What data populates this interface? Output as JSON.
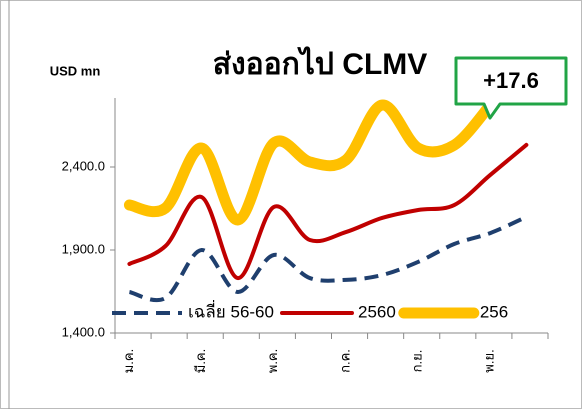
{
  "chart_data": {
    "type": "line",
    "title": "ส่งออกไป CLMV",
    "y_axis_label": "USD mn",
    "annotation": "+17.6",
    "categories": [
      "ม.ค.",
      null,
      "มี.ค.",
      null,
      "พ.ค.",
      null,
      "ก.ค.",
      null,
      "ก.ย.",
      null,
      "พ.ย.",
      null
    ],
    "series": [
      {
        "name": "เฉลี่ย 56-60",
        "color": "#1f3f6e",
        "dashed": true,
        "width": 4,
        "values": [
          1647,
          1611,
          1900,
          1647,
          1870,
          1731,
          1720,
          1749,
          1828,
          1936,
          2002,
          2099
        ]
      },
      {
        "name": "2560",
        "color": "#c00000",
        "dashed": false,
        "width": 4,
        "values": [
          1816,
          1924,
          2219,
          1731,
          2159,
          1960,
          2008,
          2093,
          2141,
          2171,
          2352,
          2533
        ]
      },
      {
        "name": "256",
        "color": "#ffc000",
        "dashed": false,
        "width": 11,
        "values": [
          2171,
          2153,
          2514,
          2081,
          2544,
          2430,
          2442,
          2773,
          2514,
          2532,
          2773,
          null
        ]
      }
    ],
    "ylim": [
      1400,
      2900
    ],
    "yticks": [
      {
        "value": 1400,
        "label": "1,400.0"
      },
      {
        "value": 1900,
        "label": "1,900.0"
      },
      {
        "value": 2400,
        "label": "2,400.0"
      }
    ],
    "grid": false,
    "legend": "bottom"
  }
}
